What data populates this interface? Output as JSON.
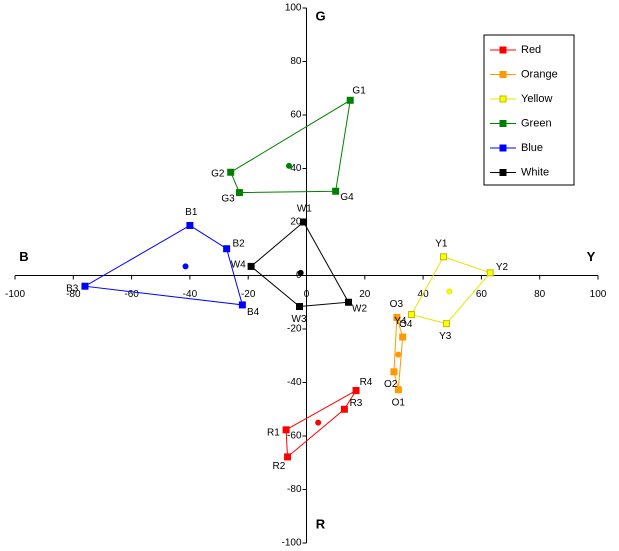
{
  "chart_data": {
    "type": "scatter",
    "axis_labels": {
      "top": "G",
      "right": "Y",
      "bottom": "R",
      "left": "B"
    },
    "xlim": [
      -100,
      100
    ],
    "ylim": [
      -100,
      100
    ],
    "xticks": [
      -100,
      -80,
      -60,
      -40,
      -20,
      0,
      20,
      40,
      60,
      80,
      100
    ],
    "yticks": [
      -100,
      -80,
      -60,
      -40,
      -20,
      0,
      20,
      40,
      60,
      80,
      100
    ],
    "series": [
      {
        "name": "Red",
        "color": "#ff0000",
        "labels": [
          "R1",
          "R4",
          "R3",
          "R2"
        ],
        "x": [
          -7,
          17,
          13,
          -6.5
        ],
        "y": [
          -57.7,
          -43,
          -50,
          -67.8
        ],
        "centroid": [
          4,
          -55
        ]
      },
      {
        "name": "Orange",
        "color": "#ff9900",
        "labels": [
          "O3",
          "O4",
          "O1",
          "O2"
        ],
        "x": [
          31,
          33,
          31.5,
          30
        ],
        "y": [
          -15.7,
          -23,
          -42.7,
          -36
        ],
        "centroid": [
          31.5,
          -29.6
        ]
      },
      {
        "name": "Yellow",
        "color": "#ffff00",
        "labels": [
          "Y1",
          "Y2",
          "Y3",
          "Y4"
        ],
        "x": [
          47,
          63,
          48,
          36
        ],
        "y": [
          7,
          1,
          -18,
          -14.6
        ],
        "centroid": [
          49,
          -6
        ]
      },
      {
        "name": "Green",
        "color": "#008000",
        "labels": [
          "G1",
          "G4",
          "G3",
          "G2"
        ],
        "x": [
          15,
          10,
          -23,
          -26
        ],
        "y": [
          65.5,
          31.5,
          31,
          38.6
        ],
        "centroid": [
          -6,
          41
        ]
      },
      {
        "name": "Blue",
        "color": "#0000ff",
        "labels": [
          "B1",
          "B2",
          "B4",
          "B3"
        ],
        "x": [
          -40,
          -27.4,
          -22,
          -76
        ],
        "y": [
          18.7,
          10,
          -11,
          -4
        ],
        "centroid": [
          -41.5,
          3.4
        ]
      },
      {
        "name": "White",
        "color": "#000000",
        "labels": [
          "W1",
          "W2",
          "W3",
          "W4"
        ],
        "x": [
          -1,
          14.4,
          -2.4,
          -19
        ],
        "y": [
          20,
          -10,
          -11.6,
          3.4
        ],
        "centroid": [
          -2,
          1
        ]
      }
    ]
  }
}
